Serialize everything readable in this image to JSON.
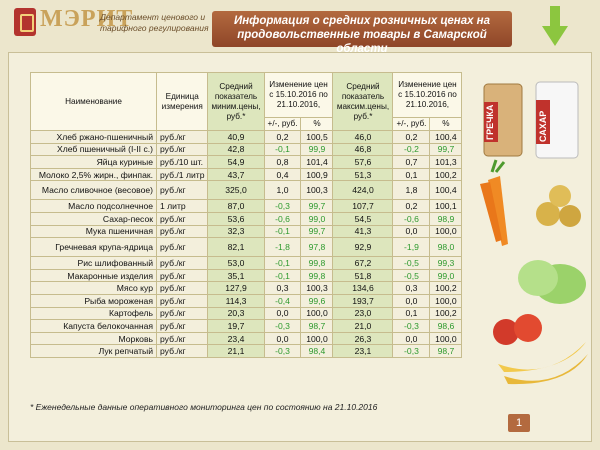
{
  "header": {
    "logo_name": "МЭРИТ",
    "logo_sub": "Департамент ценового и тарифного регулирования",
    "title": "Информация о средних розничных ценах на продовольственные товары в Самарской области"
  },
  "table": {
    "columns": {
      "name": "Наименование",
      "unit": "Единица измерения",
      "min": "Средний показатель миним.цены, руб.*",
      "change_min": "Изменение цен с 15.10.2016 по 21.10.2016,",
      "max": "Средний показатель максим.цены, руб.*",
      "change_max": "Изменение цен с 15.10.2016 по 21.10.2016,",
      "delta": "+/-, руб.",
      "percent": "%"
    },
    "rows": [
      {
        "name": "Хлеб ржано-пшеничный",
        "unit": "руб./кг",
        "min": "40,9",
        "dmin": "0,2",
        "pmin": "100,5",
        "max": "46,0",
        "dmax": "0,2",
        "pmax": "100,4"
      },
      {
        "name": "Хлеб пшеничный  (I-II с.)",
        "unit": "руб./кг",
        "min": "42,8",
        "dmin": "-0,1",
        "pmin": "99,9",
        "max": "46,8",
        "dmax": "-0,2",
        "pmax": "99,7"
      },
      {
        "name": "Яйца куриные",
        "unit": "руб./10 шт.",
        "min": "54,9",
        "dmin": "0,8",
        "pmin": "101,4",
        "max": "57,6",
        "dmax": "0,7",
        "pmax": "101,3"
      },
      {
        "name": "Молоко 2,5% жирн., финпак.",
        "unit": "руб./1 литр",
        "min": "43,7",
        "dmin": "0,4",
        "pmin": "100,9",
        "max": "51,3",
        "dmax": "0,1",
        "pmax": "100,2"
      },
      {
        "name": "Масло сливочное (весовое)",
        "unit": "руб./кг",
        "min": "325,0",
        "dmin": "1,0",
        "pmin": "100,3",
        "max": "424,0",
        "dmax": "1,8",
        "pmax": "100,4"
      },
      {
        "name": "Масло подсолнечное",
        "unit": "1 литр",
        "min": "87,0",
        "dmin": "-0,3",
        "pmin": "99,7",
        "max": "107,7",
        "dmax": "0,2",
        "pmax": "100,1"
      },
      {
        "name": "Сахар-песок",
        "unit": "руб./кг",
        "min": "53,6",
        "dmin": "-0,6",
        "pmin": "99,0",
        "max": "54,5",
        "dmax": "-0,6",
        "pmax": "98,9"
      },
      {
        "name": "Мука пшеничная",
        "unit": "руб./кг",
        "min": "32,3",
        "dmin": "-0,1",
        "pmin": "99,7",
        "max": "41,3",
        "dmax": "0,0",
        "pmax": "100,0"
      },
      {
        "name": "Гречневая крупа-ядрица",
        "unit": "руб./кг",
        "min": "82,1",
        "dmin": "-1,8",
        "pmin": "97,8",
        "max": "92,9",
        "dmax": "-1,9",
        "pmax": "98,0"
      },
      {
        "name": "Рис шлифованный",
        "unit": "руб./кг",
        "min": "53,0",
        "dmin": "-0,1",
        "pmin": "99,8",
        "max": "67,2",
        "dmax": "-0,5",
        "pmax": "99,3"
      },
      {
        "name": "Макаронные изделия",
        "unit": "руб./кг",
        "min": "35,1",
        "dmin": "-0,1",
        "pmin": "99,8",
        "max": "51,8",
        "dmax": "-0,5",
        "pmax": "99,0"
      },
      {
        "name": "Мясо кур",
        "unit": "руб./кг",
        "min": "127,9",
        "dmin": "0,3",
        "pmin": "100,3",
        "max": "134,6",
        "dmax": "0,3",
        "pmax": "100,2"
      },
      {
        "name": "Рыба мороженая",
        "unit": "руб./кг",
        "min": "114,3",
        "dmin": "-0,4",
        "pmin": "99,6",
        "max": "193,7",
        "dmax": "0,0",
        "pmax": "100,0"
      },
      {
        "name": "Картофель",
        "unit": "руб./кг",
        "min": "20,3",
        "dmin": "0,0",
        "pmin": "100,0",
        "max": "23,0",
        "dmax": "0,1",
        "pmax": "100,2"
      },
      {
        "name": "Капуста белокочанная",
        "unit": "руб./кг",
        "min": "19,7",
        "dmin": "-0,3",
        "pmin": "98,7",
        "max": "21,0",
        "dmax": "-0,3",
        "pmax": "98,6"
      },
      {
        "name": "Морковь",
        "unit": "руб./кг",
        "min": "23,4",
        "dmin": "0,0",
        "pmin": "100,0",
        "max": "26,3",
        "dmax": "0,0",
        "pmax": "100,0"
      },
      {
        "name": "Лук репчатый",
        "unit": "руб./кг",
        "min": "21,1",
        "dmin": "-0,3",
        "pmin": "98,4",
        "max": "23,1",
        "dmax": "-0,3",
        "pmax": "98,7"
      }
    ]
  },
  "products": {
    "grechka": "ГРЕЧКА",
    "sahar": "САХАР"
  },
  "footnote": "*  Еженедельные данные оперативного мониторинга цен по состоянию на  21.10.2016",
  "page_number": "1",
  "colors": {
    "accent": "#b36a3f",
    "negative": "#2e9a2e",
    "highlight": "#dde6bd"
  },
  "icons": [
    "down-arrow-icon",
    "grocery-illustration"
  ]
}
